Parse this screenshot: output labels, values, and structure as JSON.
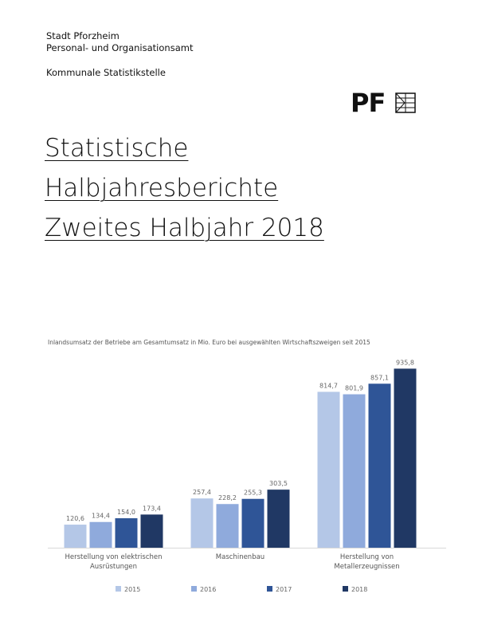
{
  "header": {
    "lines": [
      "Stadt Pforzheim",
      "Personal- und Organisationsamt"
    ],
    "unit": "Kommunale Statistikstelle",
    "logo": "PF"
  },
  "title": {
    "lines": [
      "Statistische",
      "Halbjahresberichte",
      "Zweites Halbjahr 2018"
    ]
  },
  "chart_data": {
    "type": "bar",
    "subtitle": "Inlandsumsatz der Betriebe am Gesamtumsatz in Mio. Euro bei ausgewählten Wirtschaftszweigen seit 2015",
    "categories": [
      "Herstellung von elektrischen Ausrüstungen",
      "Maschinenbau",
      "Herstellung von Metallerzeugnissen"
    ],
    "series": [
      {
        "name": "2015",
        "color": "#b4c7e7",
        "values": [
          120.6,
          257.4,
          814.7
        ],
        "value_labels": [
          "120,6",
          "257,4",
          "814,7"
        ]
      },
      {
        "name": "2016",
        "color": "#8faadc",
        "values": [
          134.4,
          228.2,
          801.9
        ],
        "value_labels": [
          "134,4",
          "228,2",
          "801,9"
        ]
      },
      {
        "name": "2017",
        "color": "#2f5597",
        "values": [
          154.0,
          255.3,
          857.1
        ],
        "value_labels": [
          "154,0",
          "255,3",
          "857,1"
        ]
      },
      {
        "name": "2018",
        "color": "#203864",
        "values": [
          173.4,
          303.5,
          935.8
        ],
        "value_labels": [
          "173,4",
          "303,5",
          "935,8"
        ]
      }
    ],
    "ylim": [
      0,
      1000
    ]
  }
}
